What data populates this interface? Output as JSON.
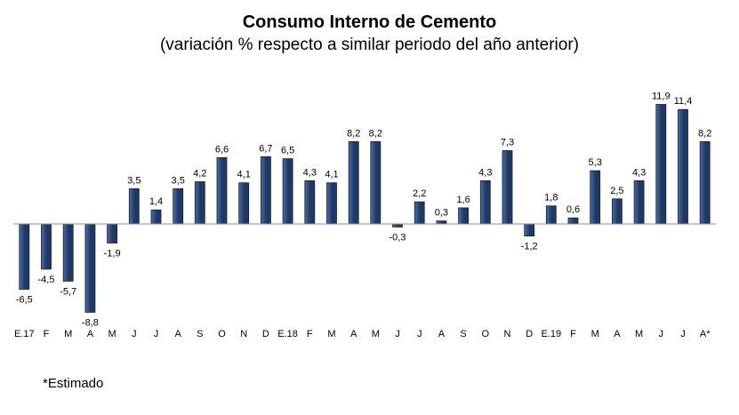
{
  "chart_data": {
    "type": "bar",
    "title": "Consumo Interno de Cemento",
    "subtitle": "(variación % respecto a similar periodo del año anterior)",
    "categories": [
      "E.17",
      "F",
      "M",
      "A",
      "M",
      "J",
      "J",
      "A",
      "S",
      "O",
      "N",
      "D",
      "E.18",
      "F",
      "M",
      "A",
      "M",
      "J",
      "J",
      "A",
      "S",
      "O",
      "N",
      "D",
      "E.19",
      "F",
      "M",
      "A",
      "M",
      "J",
      "J",
      "A*"
    ],
    "values": [
      -6.5,
      -4.5,
      -5.7,
      -8.8,
      -1.9,
      3.5,
      1.4,
      3.5,
      4.2,
      6.6,
      4.1,
      6.7,
      6.5,
      4.3,
      4.1,
      8.2,
      8.2,
      -0.3,
      2.2,
      0.3,
      1.6,
      4.3,
      7.3,
      -1.2,
      1.8,
      0.6,
      5.3,
      2.5,
      4.3,
      11.9,
      11.4,
      8.2
    ],
    "value_labels": [
      "-6,5",
      "-4,5",
      "-5,7",
      "-8,8",
      "-1,9",
      "3,5",
      "1,4",
      "3,5",
      "4,2",
      "6,6",
      "4,1",
      "6,7",
      "6,5",
      "4,3",
      "4,1",
      "8,2",
      "8,2",
      "-0,3",
      "2,2",
      "0,3",
      "1,6",
      "4,3",
      "7,3",
      "-1,2",
      "1,8",
      "0,6",
      "5,3",
      "2,5",
      "4,3",
      "11,9",
      "11,4",
      "8,2"
    ],
    "bar_color": "#1f3864",
    "bar_color_light": "#4a6fa5",
    "grid": false,
    "legend": "none"
  },
  "footnote": "*Estimado"
}
